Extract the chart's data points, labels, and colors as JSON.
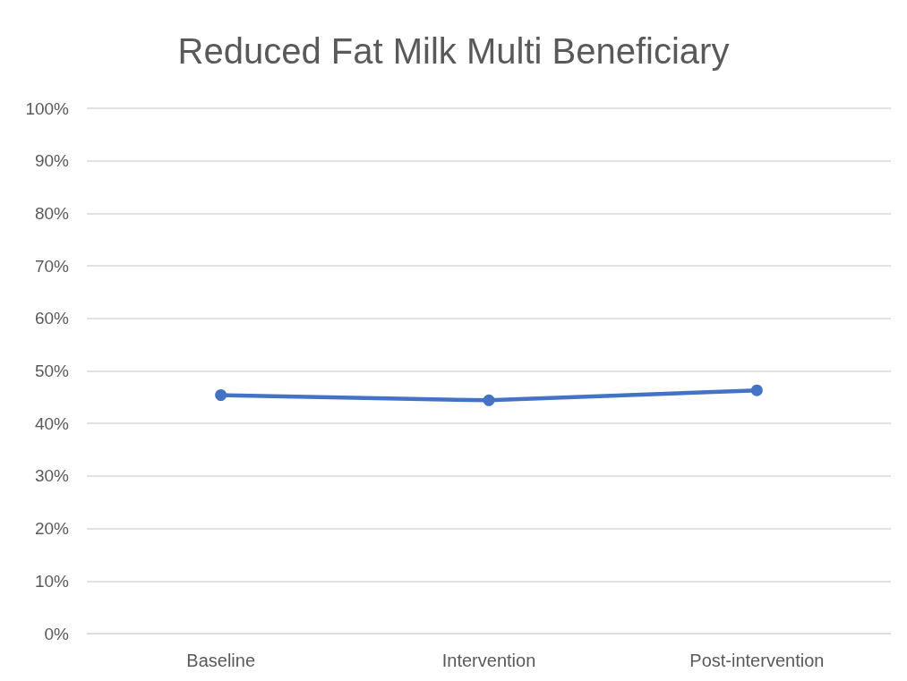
{
  "chart_data": {
    "type": "line",
    "title": "Reduced Fat Milk Multi Beneficiary",
    "categories": [
      "Baseline",
      "Intervention",
      "Post-intervention"
    ],
    "series": [
      {
        "color": "#4472c4",
        "values": [
          45.4,
          44.4,
          46.3
        ]
      }
    ],
    "ylim": [
      0,
      100
    ],
    "yticks": [
      {
        "value": 0,
        "label": "0%"
      },
      {
        "value": 10,
        "label": "10%"
      },
      {
        "value": 20,
        "label": "20%"
      },
      {
        "value": 30,
        "label": "30%"
      },
      {
        "value": 40,
        "label": "40%"
      },
      {
        "value": 50,
        "label": "50%"
      },
      {
        "value": 60,
        "label": "60%"
      },
      {
        "value": 70,
        "label": "70%"
      },
      {
        "value": 80,
        "label": "80%"
      },
      {
        "value": 90,
        "label": "90%"
      },
      {
        "value": 100,
        "label": "100%"
      }
    ],
    "grid": "y",
    "marker": "circle",
    "line_style": "solid"
  }
}
